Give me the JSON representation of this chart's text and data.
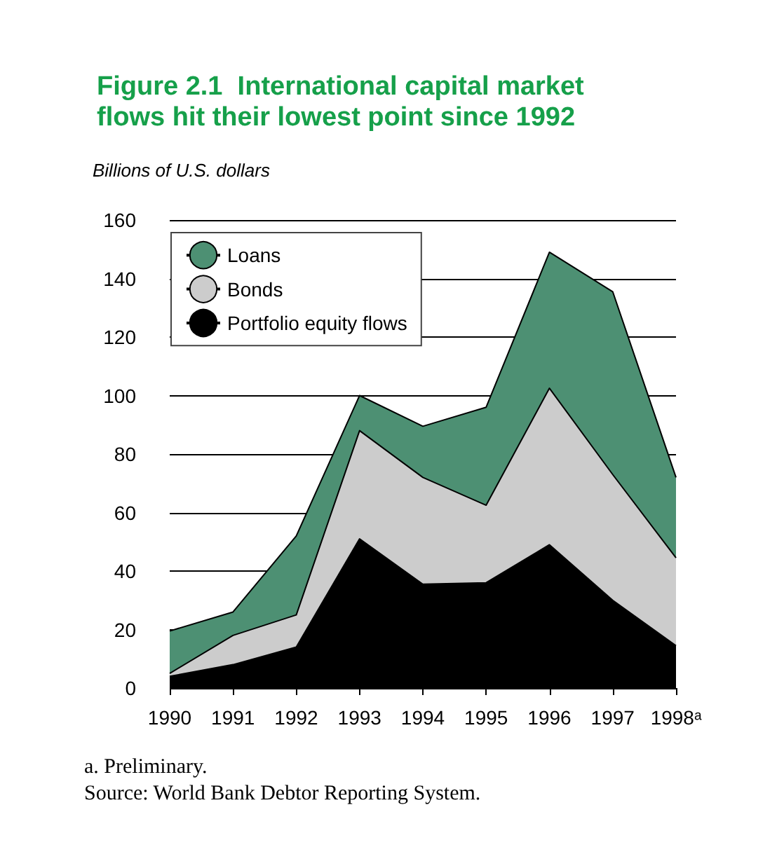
{
  "chart_data": {
    "type": "area",
    "title": "Figure 2.1  International capital market\nflows hit their lowest point since 1992",
    "ylabel": "Billions of U.S. dollars",
    "categories": [
      "1990",
      "1991",
      "1992",
      "1993",
      "1994",
      "1995",
      "1996",
      "1997",
      "1998ᵃ"
    ],
    "stacked": true,
    "series": [
      {
        "name": "Portfolio equity flows",
        "color": "#000000",
        "values": [
          4,
          8,
          14,
          51,
          35.5,
          36,
          49,
          30,
          14.5
        ]
      },
      {
        "name": "Bonds",
        "color": "#cccccc",
        "values": [
          1,
          10,
          11,
          37,
          36.5,
          26.5,
          53.5,
          43,
          30
        ]
      },
      {
        "name": "Loans",
        "color": "#4d9073",
        "values": [
          14.5,
          8,
          27,
          12,
          17.5,
          33.5,
          46.5,
          62.5,
          27.5
        ]
      }
    ],
    "ylim": [
      0,
      160
    ],
    "yticks": [
      0,
      20,
      40,
      60,
      80,
      100,
      120,
      140,
      160
    ],
    "grid": "y",
    "legend": "top left",
    "annotations": [
      "a. Preliminary.",
      "Source: World Bank Debtor Reporting System."
    ]
  }
}
